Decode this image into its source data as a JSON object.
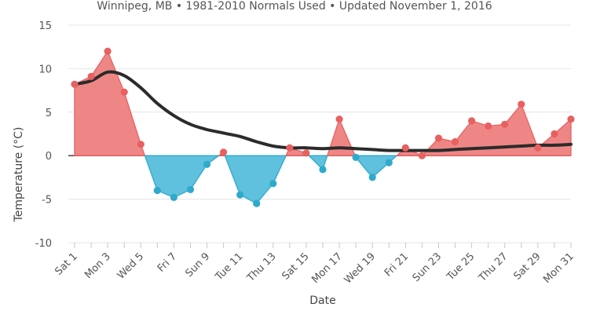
{
  "chart_data": {
    "type": "area",
    "subtitle": "Winnipeg, MB • 1981-2010 Normals Used • Updated November 1, 2016",
    "xlabel": "Date",
    "ylabel": "Temperature (°C)",
    "ylim": [
      -10,
      15
    ],
    "yticks": [
      -10,
      -5,
      0,
      5,
      10,
      15
    ],
    "grid": true,
    "legend": "none",
    "x_tick_labels": [
      "Sat 1",
      "Mon 3",
      "Wed 5",
      "Fri 7",
      "Sun 9",
      "Tue 11",
      "Thu 13",
      "Sat 15",
      "Mon 17",
      "Wed 19",
      "Fri 21",
      "Sun 23",
      "Tue 25",
      "Thu 27",
      "Sat 29",
      "Mon 31"
    ],
    "x": [
      1,
      2,
      3,
      4,
      5,
      6,
      7,
      8,
      9,
      10,
      11,
      12,
      13,
      14,
      15,
      16,
      17,
      18,
      19,
      20,
      21,
      22,
      23,
      24,
      25,
      26,
      27,
      28,
      29,
      30,
      31
    ],
    "series": [
      {
        "type": "area",
        "values": [
          8.2,
          9.1,
          12.0,
          7.3,
          1.3,
          -4.0,
          -4.8,
          -3.9,
          -1.0,
          0.4,
          -4.5,
          -5.5,
          -3.2,
          0.9,
          0.3,
          -1.6,
          4.2,
          -0.2,
          -2.5,
          -0.8,
          0.9,
          0.0,
          2.0,
          1.6,
          4.0,
          3.4,
          3.6,
          5.9,
          0.9,
          2.5,
          4.2
        ]
      },
      {
        "type": "line",
        "values": [
          8.2,
          8.6,
          9.6,
          9.2,
          7.8,
          6.0,
          4.6,
          3.6,
          3.0,
          2.6,
          2.2,
          1.6,
          1.1,
          0.9,
          0.9,
          0.8,
          0.9,
          0.8,
          0.7,
          0.6,
          0.6,
          0.6,
          0.6,
          0.7,
          0.8,
          0.9,
          1.0,
          1.1,
          1.2,
          1.2,
          1.3
        ]
      }
    ],
    "colors": {
      "positive_fill": "#ef8686",
      "negative_fill": "#5fc1dd",
      "positive_marker": "#e8605f",
      "negative_marker": "#2fa9cc",
      "normal_line": "#2b2b2b",
      "zero_line": "#333333",
      "grid": "#e4e4e4",
      "text": "#555555"
    }
  }
}
